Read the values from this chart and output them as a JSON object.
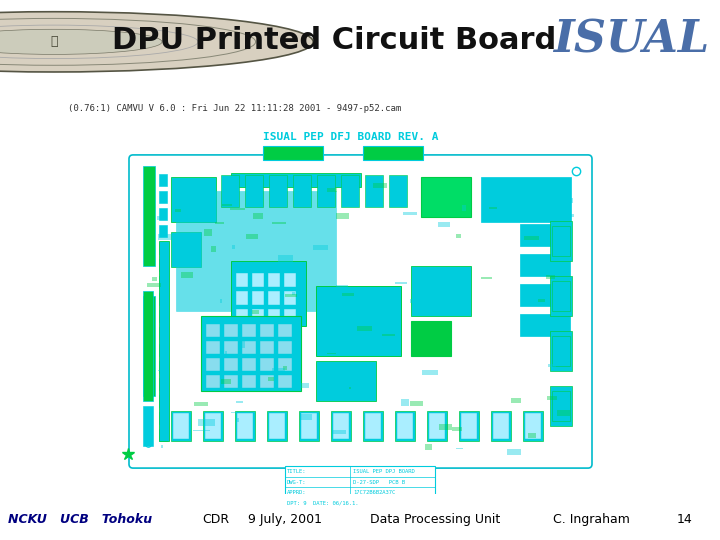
{
  "title": "DPU Printed Circuit Board",
  "isual_text": "ISUAL",
  "footer_left_italic": "NCKU   UCB   Tohoku",
  "footer_items": [
    "CDR",
    "9 July, 2001",
    "Data Processing Unit",
    "C. Ingraham",
    "14"
  ],
  "bg_color": "#ffffff",
  "header_bar_color": "#7B3B2A",
  "header_text_color": "#111111",
  "isual_color": "#4A6EA8",
  "footer_text_color": "#000080",
  "footer_bar_color": "#7B3B2A",
  "pcb_bg": "#ffffff",
  "pcb_border_color": "#00BBCC",
  "pcb_cyan": "#00CCDD",
  "pcb_green": "#00CC44",
  "pcb_label": "ISUAL PEP DFJ BOARD REV. A",
  "cam_text": "(0.76:1) CAMVU V 6.0 : Fri Jun 22 11:11:28 2001 - 9497-p52.cam",
  "title_fontsize": 22,
  "isual_fontsize": 32,
  "footer_fontsize": 9,
  "cam_fontsize": 6.5,
  "pcb_label_fontsize": 8
}
